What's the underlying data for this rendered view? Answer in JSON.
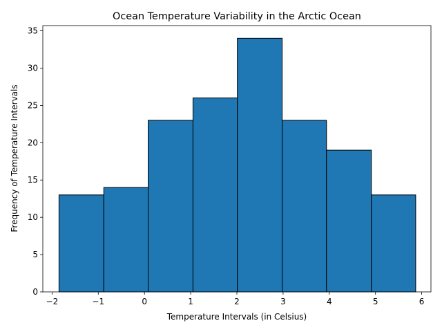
{
  "chart_data": {
    "type": "bar",
    "title": "Ocean Temperature Variability in the Arctic Ocean",
    "xlabel": "Temperature Intervals (in Celsius)",
    "ylabel": "Frequency of Temperature Intervals",
    "bin_edges": [
      -1.85,
      -0.88,
      0.08,
      1.05,
      2.01,
      2.98,
      3.94,
      4.91,
      5.87
    ],
    "values": [
      13,
      14,
      23,
      26,
      34,
      23,
      19,
      13
    ],
    "xlim": [
      -2.2,
      6.2
    ],
    "ylim": [
      0,
      35.7
    ],
    "xticks": [
      -2,
      -1,
      0,
      1,
      2,
      3,
      4,
      5,
      6
    ],
    "xtick_labels": [
      "−2",
      "−1",
      "0",
      "1",
      "2",
      "3",
      "4",
      "5",
      "6"
    ],
    "yticks": [
      0,
      5,
      10,
      15,
      20,
      25,
      30,
      35
    ],
    "ytick_labels": [
      "0",
      "5",
      "10",
      "15",
      "20",
      "25",
      "30",
      "35"
    ],
    "bar_color": "#1f77b4",
    "edge_color": "#000000",
    "grid": false,
    "legend": "none"
  }
}
